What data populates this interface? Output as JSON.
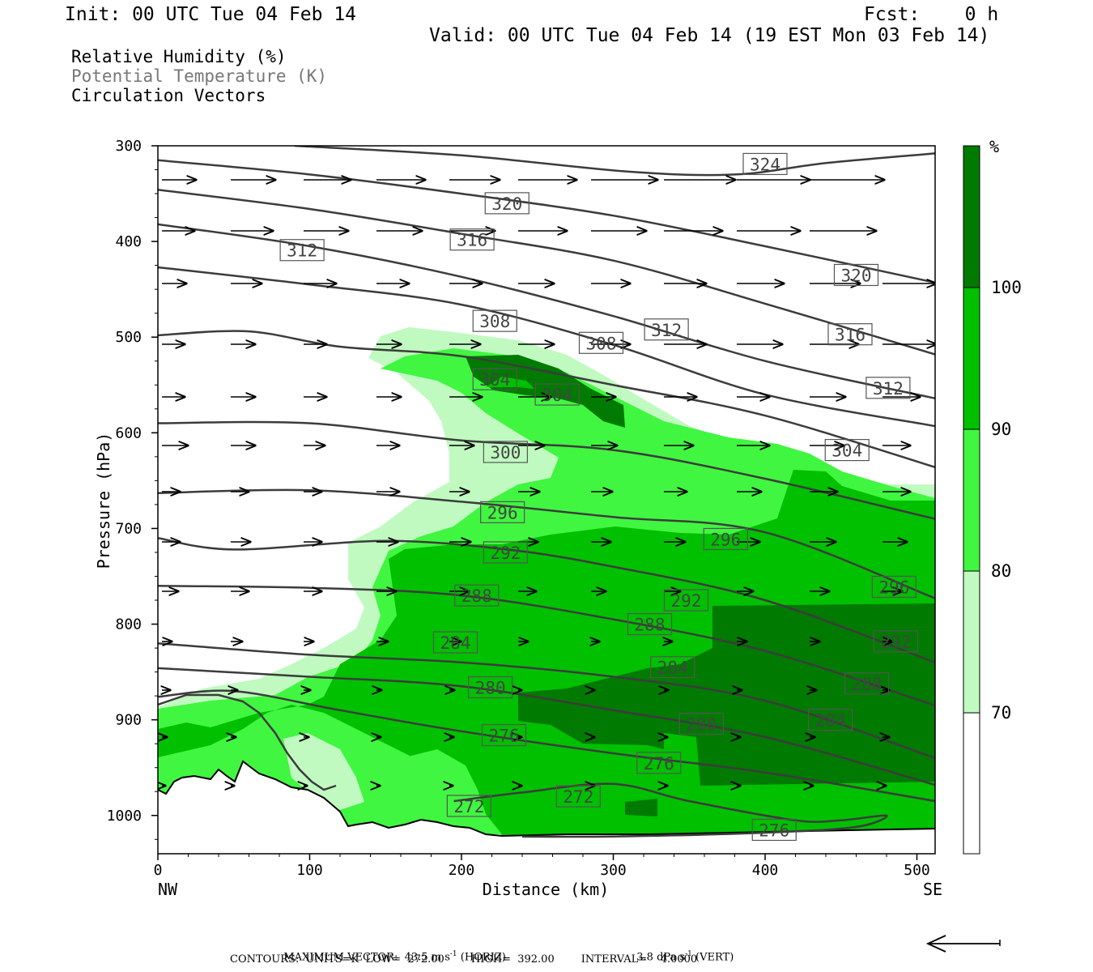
{
  "header": {
    "init": "Init: 00 UTC Tue 04 Feb 14",
    "fcst": "Fcst:    0 h",
    "valid": "Valid: 00 UTC Tue 04 Feb 14 (19 EST Mon 03 Feb 14)"
  },
  "legend": {
    "rh": "Relative Humidity (%)",
    "theta": "Potential Temperature (K)",
    "vectors": "Circulation Vectors"
  },
  "colors": {
    "shade_70": "#c0fac0",
    "shade_80": "#40f640",
    "shade_90": "#00c000",
    "shade_100": "#007a00",
    "contour": "#3c3c3c"
  },
  "chart_data": {
    "type": "cross-section",
    "ylabel": "Pressure (hPa)",
    "xlabel": "Distance (km)",
    "xlim": [
      0,
      512
    ],
    "ylim": [
      300,
      1040
    ],
    "y_log_scale": false,
    "x_ticks": [
      0,
      100,
      200,
      300,
      400,
      500
    ],
    "y_ticks": [
      300,
      400,
      500,
      600,
      700,
      800,
      900,
      1000
    ],
    "x_end_labels": {
      "left": "NW",
      "right": "SE"
    },
    "colorbar": {
      "unit": "%",
      "levels": [
        70,
        80,
        90,
        100
      ]
    },
    "theta_contours": [
      {
        "label": "324",
        "pts": [
          [
            90,
            300
          ],
          [
            200,
            310
          ],
          [
            310,
            327
          ],
          [
            380,
            330
          ],
          [
            440,
            318
          ],
          [
            512,
            308
          ]
        ],
        "labels": [
          [
            400,
            319
          ]
        ]
      },
      {
        "label": "320",
        "pts": [
          [
            0,
            315
          ],
          [
            100,
            330
          ],
          [
            200,
            350
          ],
          [
            300,
            373
          ],
          [
            400,
            405
          ],
          [
            512,
            443
          ]
        ],
        "labels": [
          [
            230,
            360
          ],
          [
            460,
            435
          ]
        ]
      },
      {
        "label": "316",
        "pts": [
          [
            0,
            346
          ],
          [
            100,
            366
          ],
          [
            200,
            392
          ],
          [
            300,
            420
          ],
          [
            400,
            465
          ],
          [
            512,
            518
          ]
        ],
        "labels": [
          [
            207,
            398
          ],
          [
            456,
            497
          ]
        ]
      },
      {
        "label": "312",
        "pts": [
          [
            0,
            382
          ],
          [
            100,
            405
          ],
          [
            200,
            437
          ],
          [
            300,
            478
          ],
          [
            400,
            525
          ],
          [
            512,
            564
          ]
        ],
        "labels": [
          [
            95,
            409
          ],
          [
            335,
            492
          ],
          [
            481,
            553
          ]
        ]
      },
      {
        "label": "308",
        "pts": [
          [
            0,
            427
          ],
          [
            100,
            445
          ],
          [
            200,
            466
          ],
          [
            300,
            508
          ],
          [
            400,
            560
          ],
          [
            512,
            593
          ]
        ],
        "labels": [
          [
            222,
            483
          ],
          [
            292,
            506
          ]
        ]
      },
      {
        "label": "304",
        "pts": [
          [
            0,
            498
          ],
          [
            60,
            494
          ],
          [
            120,
            510
          ],
          [
            200,
            520
          ],
          [
            300,
            550
          ],
          [
            400,
            582
          ],
          [
            512,
            636
          ]
        ],
        "labels": [
          [
            222,
            544
          ],
          [
            263,
            560
          ],
          [
            454,
            618
          ]
        ]
      },
      {
        "label": "300",
        "pts": [
          [
            0,
            590
          ],
          [
            100,
            590
          ],
          [
            200,
            608
          ],
          [
            300,
            618
          ],
          [
            400,
            648
          ],
          [
            512,
            690
          ]
        ],
        "labels": [
          [
            229,
            620
          ]
        ]
      },
      {
        "label": "296",
        "pts": [
          [
            0,
            663
          ],
          [
            100,
            660
          ],
          [
            200,
            672
          ],
          [
            300,
            688
          ],
          [
            400,
            704
          ],
          [
            512,
            773
          ]
        ],
        "labels": [
          [
            227,
            683
          ],
          [
            374,
            711
          ],
          [
            485,
            761
          ]
        ]
      },
      {
        "label": "292",
        "pts": [
          [
            0,
            710
          ],
          [
            50,
            722
          ],
          [
            150,
            713
          ],
          [
            230,
            722
          ],
          [
            300,
            740
          ],
          [
            400,
            775
          ],
          [
            512,
            840
          ]
        ],
        "labels": [
          [
            229,
            725
          ],
          [
            348,
            775
          ],
          [
            486,
            818
          ]
        ]
      },
      {
        "label": "288",
        "pts": [
          [
            0,
            760
          ],
          [
            100,
            762
          ],
          [
            200,
            770
          ],
          [
            300,
            795
          ],
          [
            400,
            828
          ],
          [
            512,
            885
          ]
        ],
        "labels": [
          [
            210,
            770
          ],
          [
            324,
            800
          ],
          [
            467,
            862
          ]
        ]
      },
      {
        "label": "284",
        "pts": [
          [
            0,
            820
          ],
          [
            100,
            832
          ],
          [
            200,
            840
          ],
          [
            300,
            855
          ],
          [
            400,
            880
          ],
          [
            512,
            940
          ]
        ],
        "labels": [
          [
            196,
            819
          ],
          [
            339,
            845
          ],
          [
            443,
            900
          ]
        ]
      },
      {
        "label": "280",
        "pts": [
          [
            0,
            846
          ],
          [
            100,
            855
          ],
          [
            200,
            865
          ],
          [
            300,
            890
          ],
          [
            400,
            918
          ],
          [
            512,
            968
          ]
        ],
        "labels": [
          [
            219,
            866
          ],
          [
            358,
            904
          ]
        ]
      },
      {
        "label": "276",
        "pts": [
          [
            0,
            876
          ],
          [
            50,
            870
          ],
          [
            120,
            890
          ],
          [
            200,
            912
          ],
          [
            300,
            935
          ],
          [
            400,
            955
          ],
          [
            512,
            985
          ]
        ],
        "labels": [
          [
            228,
            916
          ],
          [
            330,
            945
          ],
          [
            406,
            1015
          ]
        ]
      },
      {
        "label": "272",
        "pts": [
          [
            195,
            985
          ],
          [
            240,
            976
          ],
          [
            300,
            967
          ],
          [
            350,
            985
          ],
          [
            420,
            1005
          ],
          [
            450,
            1005
          ],
          [
            480,
            1000
          ],
          [
            460,
            1012
          ],
          [
            400,
            1018
          ],
          [
            300,
            1022
          ],
          [
            240,
            1022
          ]
        ],
        "labels": [
          [
            205,
            990
          ],
          [
            277,
            980
          ]
        ]
      }
    ],
    "footer": {
      "max_vector": "MAXIMUM VECTOR:  43.5 m s",
      "max_vector_unit": "-1",
      "horiz": " (HORIZ)",
      "vert_val": "3.8 dPa s",
      "vert_unit": "-1",
      "vert": " (VERT)",
      "contours": "CONTOURS:  UNITS=K  LOW=  272.00        HIGH=  392.00        INTERVAL=    4.0000"
    }
  }
}
